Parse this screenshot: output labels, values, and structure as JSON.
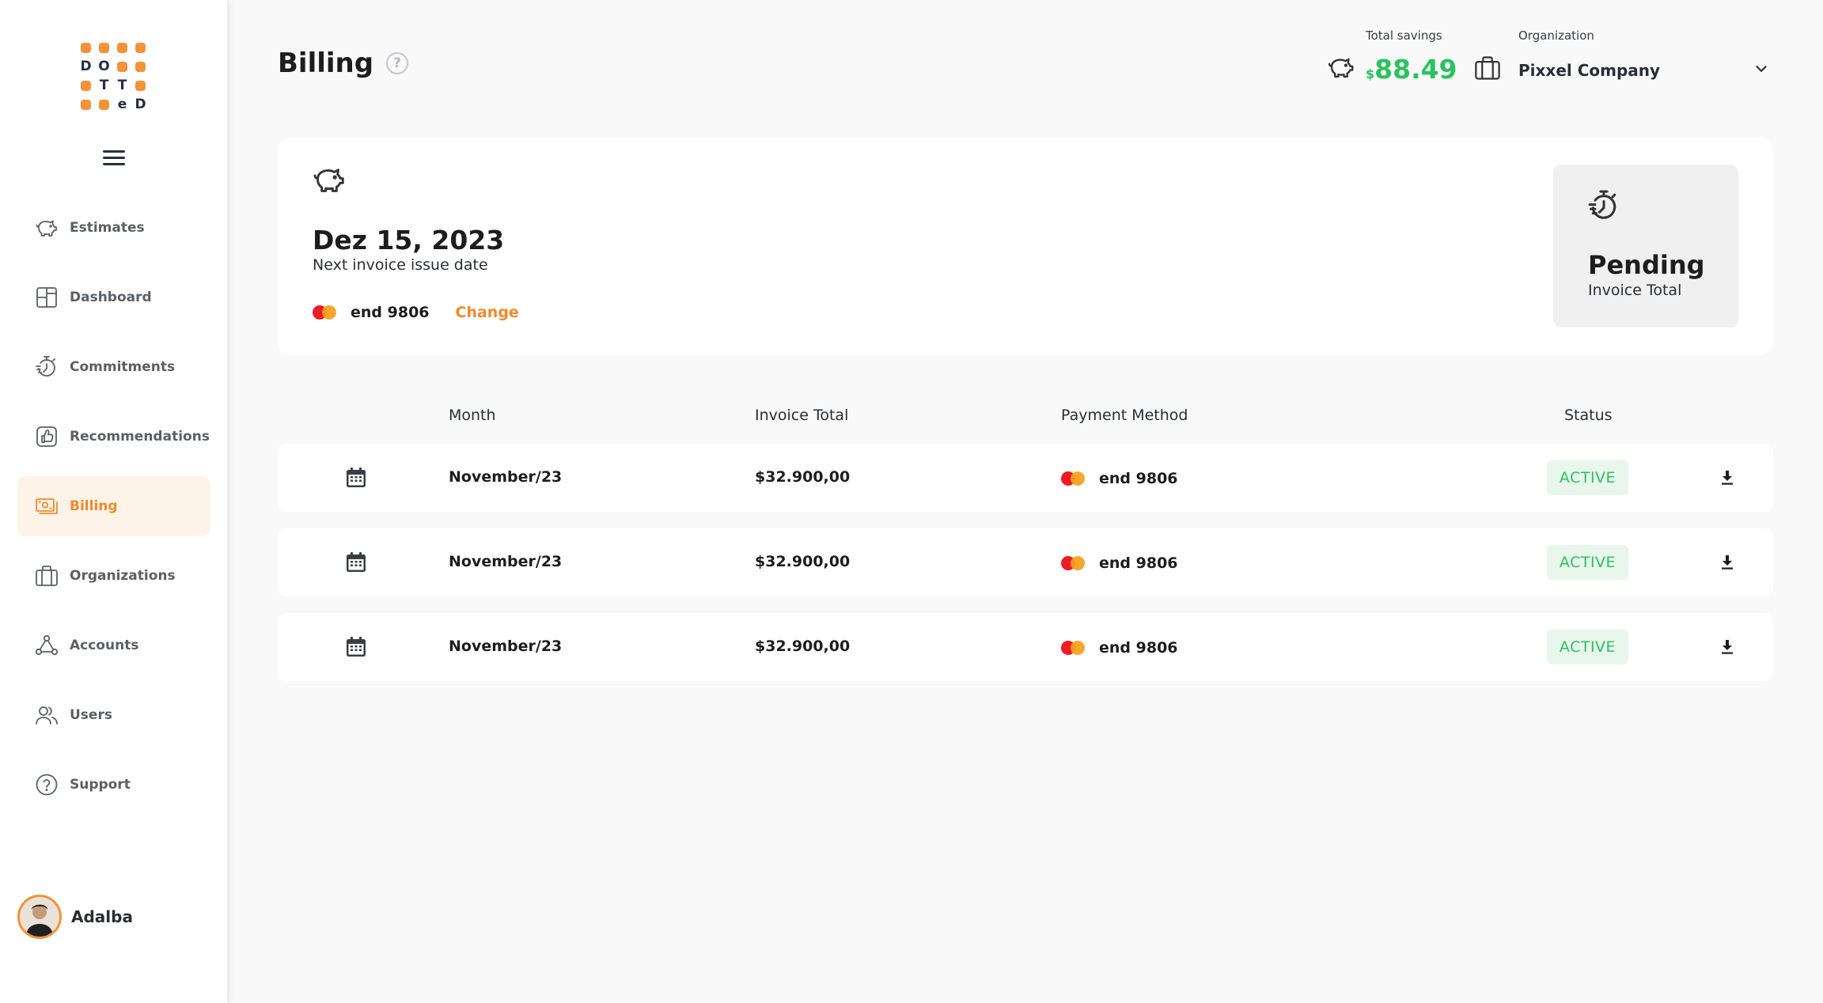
{
  "app": {
    "logo_letters": [
      "D",
      "O",
      "T",
      "T",
      "e",
      "D"
    ],
    "menu_icon": "hamburger-icon"
  },
  "sidebar": {
    "items": [
      {
        "label": "Estimates",
        "icon": "piggy-bank-icon"
      },
      {
        "label": "Dashboard",
        "icon": "dashboard-icon"
      },
      {
        "label": "Commitments",
        "icon": "stopwatch-icon"
      },
      {
        "label": "Recommendations",
        "icon": "thumbs-up-icon"
      },
      {
        "label": "Billing",
        "icon": "banknote-icon",
        "active": true
      },
      {
        "label": "Organizations",
        "icon": "briefcase-icon"
      },
      {
        "label": "Accounts",
        "icon": "network-icon"
      },
      {
        "label": "Users",
        "icon": "users-icon"
      },
      {
        "label": "Support",
        "icon": "help-circle-icon"
      }
    ],
    "user": {
      "name": "Adalba"
    }
  },
  "header": {
    "title": "Billing",
    "help_glyph": "?",
    "savings": {
      "label": "Total savings",
      "currency": "$",
      "value": "88.49"
    },
    "organization": {
      "label": "Organization",
      "selected": "Pixxel Company"
    }
  },
  "summary": {
    "date": "Dez 15, 2023",
    "date_label": "Next invoice issue date",
    "card": "end 9806",
    "change_label": "Change",
    "status_title": "Pending",
    "status_label": "Invoice Total"
  },
  "table": {
    "headers": {
      "month": "Month",
      "invoice_total": "Invoice Total",
      "payment_method": "Payment Method",
      "status": "Status"
    },
    "rows": [
      {
        "month": "November/23",
        "total": "$32.900,00",
        "method": "end 9806",
        "status": "ACTIVE"
      },
      {
        "month": "November/23",
        "total": "$32.900,00",
        "method": "end 9806",
        "status": "ACTIVE"
      },
      {
        "month": "November/23",
        "total": "$32.900,00",
        "method": "end 9806",
        "status": "ACTIVE"
      }
    ]
  },
  "colors": {
    "accent": "#f08a2c",
    "logo_dot": "#f4923a",
    "success": "#2bc25f",
    "success_bg": "#e8f6ec",
    "text_dark": "#1d1d1d",
    "nav_text": "#5b5f66",
    "active_bg": "#fdf3e8",
    "mastercard_red": "#eb1c24",
    "mastercard_orange": "#f79e1b"
  }
}
